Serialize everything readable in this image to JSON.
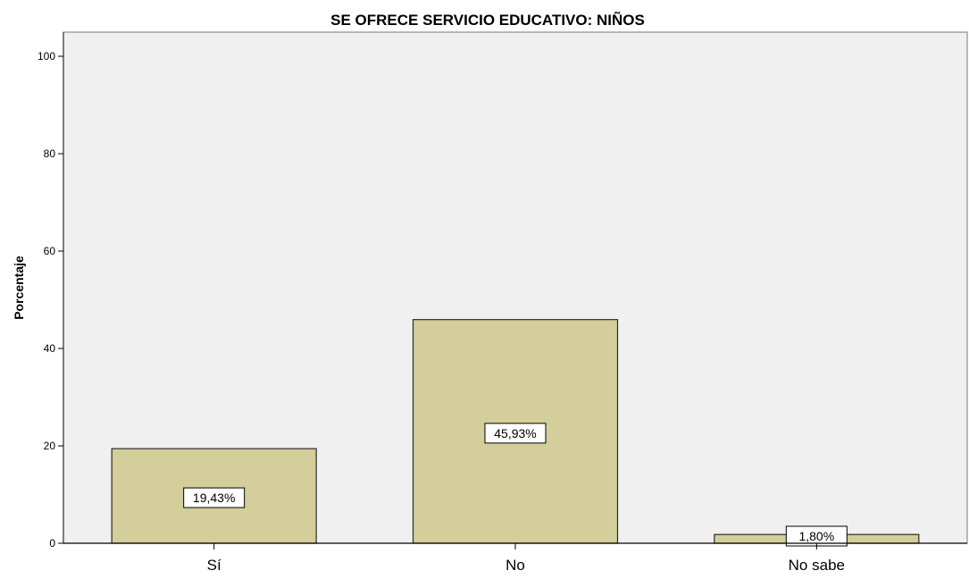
{
  "chart_data": {
    "type": "bar",
    "title": "SE OFRECE SERVICIO EDUCATIVO: NIÑOS",
    "xlabel": "",
    "ylabel": "Porcentaje",
    "categories": [
      "Sí",
      "No",
      "No sabe"
    ],
    "values": [
      19.43,
      45.93,
      1.8
    ],
    "data_labels": [
      "19,43%",
      "45,93%",
      "1,80%"
    ],
    "yticks": [
      "0",
      "20",
      "40",
      "60",
      "80",
      "100"
    ],
    "ylim": [
      0,
      105
    ],
    "grid": false,
    "colors": {
      "bar_fill": "#d3ce9a",
      "bar_stroke": "#2b2b2b",
      "plot_background": "#f0f0f0",
      "axis": "#000000"
    }
  }
}
